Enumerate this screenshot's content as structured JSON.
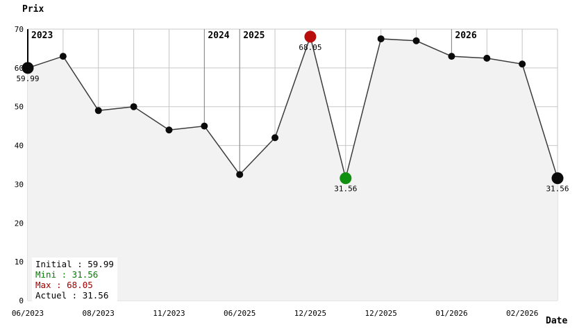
{
  "chart": {
    "title": "Prix",
    "xlabel": "Date",
    "legend": {
      "items": [
        {
          "name": "initial",
          "text": "Initial : 59.99"
        },
        {
          "name": "mini",
          "text": "Mini : 31.56"
        },
        {
          "name": "max",
          "text": "Max : 68.05"
        },
        {
          "name": "actuel",
          "text": "Actuel : 31.56"
        }
      ]
    }
  },
  "chart_data": {
    "type": "line",
    "title": "Prix",
    "xlabel": "Date",
    "ylabel": "Prix",
    "ylim": [
      0,
      70
    ],
    "y_ticks": [
      0,
      10,
      20,
      30,
      40,
      50,
      60,
      70
    ],
    "grid": true,
    "fill_under_line": true,
    "points": [
      {
        "i": 0,
        "value": 59.99,
        "tick": "06/2023"
      },
      {
        "i": 1,
        "value": 63
      },
      {
        "i": 2,
        "value": 49,
        "tick": "08/2023"
      },
      {
        "i": 3,
        "value": 50
      },
      {
        "i": 4,
        "value": 44,
        "tick": "11/2023"
      },
      {
        "i": 5,
        "value": 45
      },
      {
        "i": 6,
        "value": 32.5,
        "tick": "06/2025"
      },
      {
        "i": 7,
        "value": 42
      },
      {
        "i": 8,
        "value": 68.05,
        "tick": "12/2025"
      },
      {
        "i": 9,
        "value": 31.56
      },
      {
        "i": 10,
        "value": 67.5,
        "tick": "12/2025"
      },
      {
        "i": 11,
        "value": 67
      },
      {
        "i": 12,
        "value": 63,
        "tick": "01/2026"
      },
      {
        "i": 13,
        "value": 62.5
      },
      {
        "i": 14,
        "value": 61,
        "tick": "02/2026"
      },
      {
        "i": 15,
        "value": 31.56
      }
    ],
    "markers": [
      {
        "index": 0,
        "kind": "initial",
        "label": "59.99",
        "dot_color": "#0b0b0b",
        "text_color": "#000000"
      },
      {
        "index": 8,
        "kind": "max",
        "label": "68.05",
        "dot_color": "#b90c0c",
        "text_color": "#a00000"
      },
      {
        "index": 9,
        "kind": "mini",
        "label": "31.56",
        "dot_color": "#0f8f0f",
        "text_color": "#007d00"
      },
      {
        "index": 15,
        "kind": "actuel",
        "label": "31.56",
        "dot_color": "#0b0b0b",
        "text_color": "#000000"
      }
    ],
    "year_markers": [
      {
        "index": 0,
        "label": "2023"
      },
      {
        "index": 5,
        "label": "2024"
      },
      {
        "index": 6,
        "label": "2025"
      },
      {
        "index": 12,
        "label": "2026"
      }
    ],
    "legend_position": "bottom-left",
    "colors": {
      "fill": "#f2f2f2",
      "grid_h": "#c8c8c8",
      "grid_v": "#c4c4c4",
      "year_line": "#848484",
      "line": "#3b3b3b",
      "dot": "#0b0b0b",
      "axis": "#000000"
    }
  }
}
